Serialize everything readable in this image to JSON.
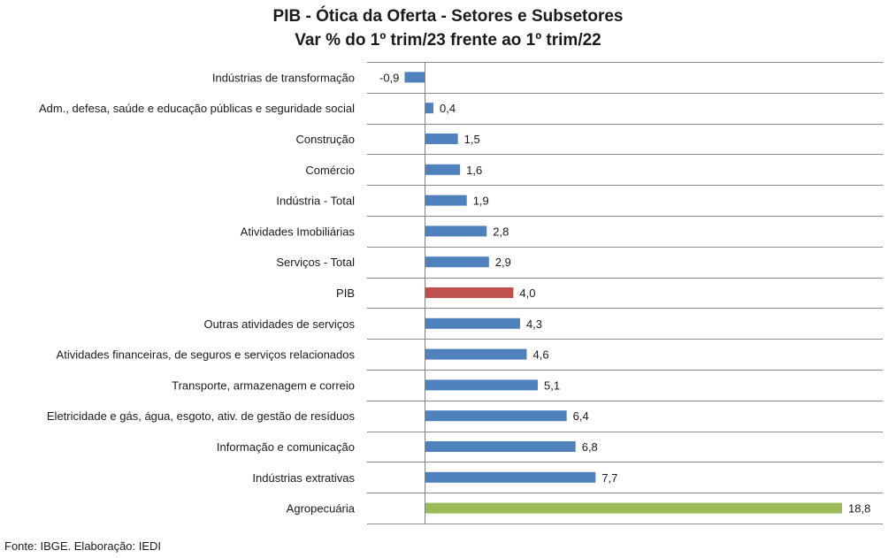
{
  "chart_data": {
    "type": "bar",
    "orientation": "horizontal",
    "title": "PIB - Ótica da Oferta - Setores e Subsetores",
    "subtitle": "Var % do 1º trim/23 frente ao 1º trim/22",
    "categories": [
      "Indústrias de transformação",
      "Adm., defesa, saúde e educação públicas e seguridade social",
      "Construção",
      "Comércio",
      "Indústria - Total",
      "Atividades Imobiliárias",
      "Serviços - Total",
      "PIB",
      "Outras atividades de serviços",
      "Atividades financeiras, de seguros e serviços relacionados",
      "Transporte, armazenagem e correio",
      "Eletricidade e gás, água, esgoto, ativ. de gestão de resíduos",
      "Informação e comunicação",
      "Indústrias extrativas",
      "Agropecuária"
    ],
    "values": [
      -0.9,
      0.4,
      1.5,
      1.6,
      1.9,
      2.8,
      2.9,
      4.0,
      4.3,
      4.6,
      5.1,
      6.4,
      6.8,
      7.7,
      18.8
    ],
    "value_labels": [
      "-0,9",
      "0,4",
      "1,5",
      "1,6",
      "1,9",
      "2,8",
      "2,9",
      "4,0",
      "4,3",
      "4,6",
      "5,1",
      "6,4",
      "6,8",
      "7,7",
      "18,8"
    ],
    "bar_colors": [
      "#4f81bd",
      "#4f81bd",
      "#4f81bd",
      "#4f81bd",
      "#4f81bd",
      "#4f81bd",
      "#4f81bd",
      "#c0504d",
      "#4f81bd",
      "#4f81bd",
      "#4f81bd",
      "#4f81bd",
      "#4f81bd",
      "#4f81bd",
      "#9bbb59"
    ],
    "xlim": [
      -0.9,
      18.8
    ],
    "grid": "horizontal separators",
    "legend": "none"
  },
  "source_note": "Fonte: IBGE. Elaboração: IEDI",
  "colors": {
    "default_bar": "#4f81bd",
    "pib_bar": "#c0504d",
    "agro_bar": "#9bbb59",
    "gridline": "#8c8c8c",
    "axis": "#7f7f7f"
  }
}
